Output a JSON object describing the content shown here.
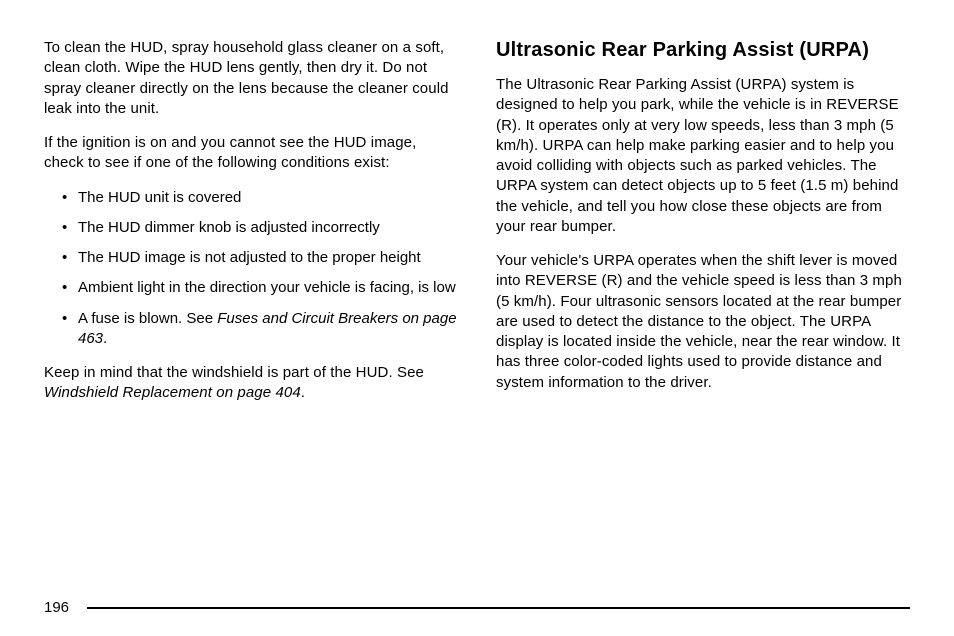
{
  "left": {
    "p1": "To clean the HUD, spray household glass cleaner on a soft, clean cloth. Wipe the HUD lens gently, then dry it. Do not spray cleaner directly on the lens because the cleaner could leak into the unit.",
    "p2": "If the ignition is on and you cannot see the HUD image, check to see if one of the following conditions exist:",
    "bullets": {
      "b1": "The HUD unit is covered",
      "b2": "The HUD dimmer knob is adjusted incorrectly",
      "b3": "The HUD image is not adjusted to the proper height",
      "b4": "Ambient light in the direction your vehicle is facing, is low",
      "b5_pre": "A fuse is blown. See ",
      "b5_italic": "Fuses and Circuit Breakers on page 463",
      "b5_post": "."
    },
    "p3_pre": "Keep in mind that the windshield is part of the HUD. See ",
    "p3_italic": "Windshield Replacement on page 404",
    "p3_post": "."
  },
  "right": {
    "heading": "Ultrasonic Rear Parking Assist (URPA)",
    "p1": "The Ultrasonic Rear Parking Assist (URPA) system is designed to help you park, while the vehicle is in REVERSE (R). It operates only at very low speeds, less than 3 mph (5 km/h). URPA can help make parking easier and to help you avoid colliding with objects such as parked vehicles. The URPA system can detect objects up to 5 feet (1.5 m) behind the vehicle, and tell you how close these objects are from your rear bumper.",
    "p2": "Your vehicle's URPA operates when the shift lever is moved into REVERSE (R) and the vehicle speed is less than 3 mph (5 km/h). Four ultrasonic sensors located at the rear bumper are used to detect the distance to the object. The URPA display is located inside the vehicle, near the rear window. It has three color-coded lights used to provide distance and system information to the driver."
  },
  "page_number": "196"
}
